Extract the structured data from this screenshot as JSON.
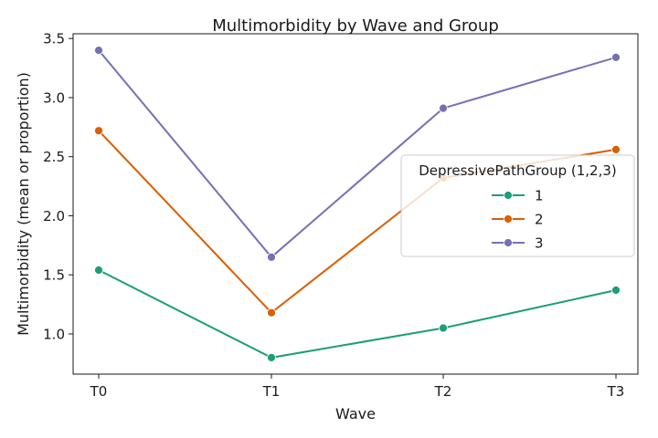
{
  "chart_data": {
    "type": "line",
    "title": "Multimorbidity by Wave and Group",
    "xlabel": "Wave",
    "ylabel": "Multimorbidity (mean or proportion)",
    "categories": [
      "T0",
      "T1",
      "T2",
      "T3"
    ],
    "ylim": [
      0.66,
      3.54
    ],
    "yticks": [
      1.0,
      1.5,
      2.0,
      2.5,
      3.0,
      3.5
    ],
    "ytick_labels": [
      "1.0",
      "1.5",
      "2.0",
      "2.5",
      "3.0",
      "3.5"
    ],
    "grid": false,
    "legend": {
      "title": "DepressivePathGroup (1,2,3)",
      "placement": "right"
    },
    "series": [
      {
        "name": "1",
        "color": "#1b9e77",
        "values": [
          1.54,
          0.8,
          1.05,
          1.37
        ]
      },
      {
        "name": "2",
        "color": "#d95f02",
        "values": [
          2.72,
          1.18,
          2.32,
          2.56
        ]
      },
      {
        "name": "3",
        "color": "#7570b3",
        "values": [
          3.4,
          1.65,
          2.91,
          3.34
        ]
      }
    ]
  }
}
